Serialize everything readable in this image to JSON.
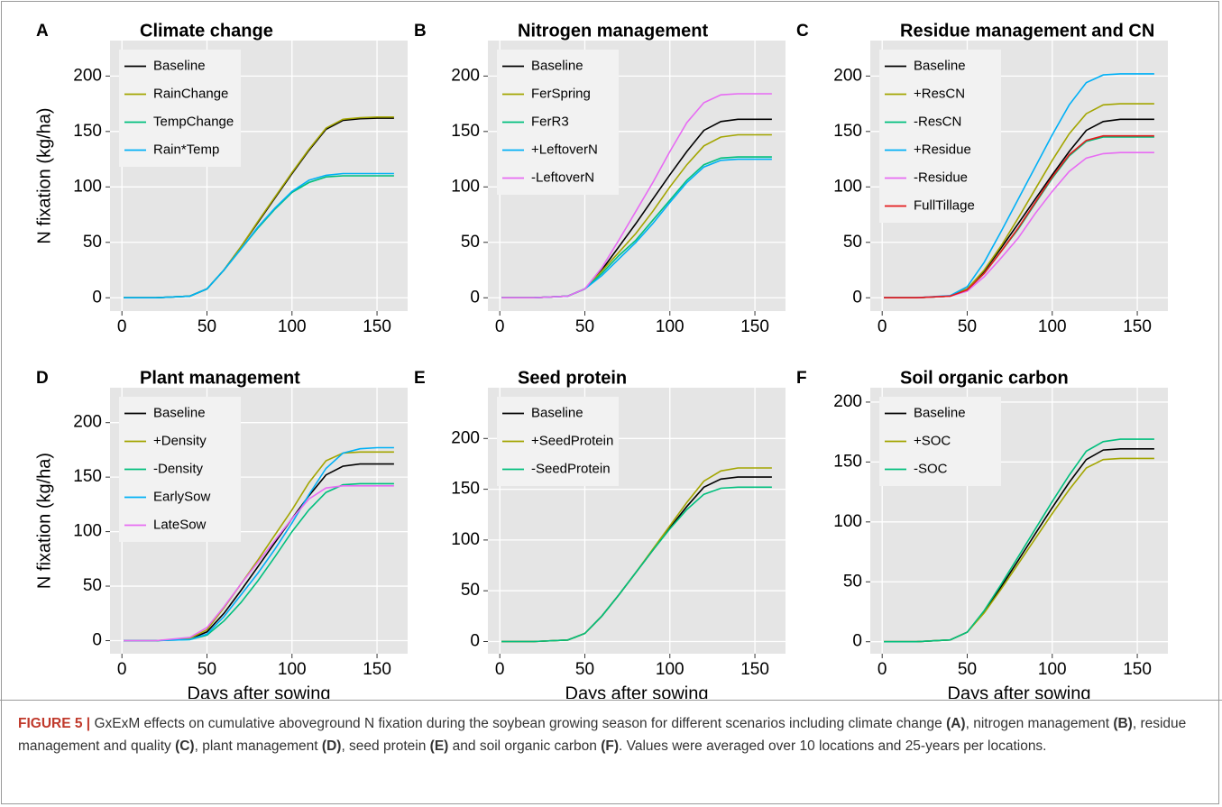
{
  "chart_data": [
    {
      "type": "line",
      "panel": "A",
      "title": "Climate change",
      "ylabel": "N fixation (kg/ha)",
      "legend": "top-left",
      "grid": true,
      "x": [
        1,
        20,
        40,
        50,
        60,
        70,
        80,
        90,
        100,
        110,
        120,
        130,
        140,
        150,
        160
      ],
      "xlim": [
        -7,
        168
      ],
      "xticks": [
        0,
        50,
        100,
        150
      ],
      "ylim": [
        -12,
        232
      ],
      "yticks": [
        0,
        50,
        100,
        150,
        200
      ],
      "series": [
        {
          "name": "Baseline",
          "color": "#000000",
          "values": [
            0,
            0,
            1.5,
            8,
            25,
            46,
            68,
            90,
            112,
            133,
            152,
            160,
            161.5,
            162,
            162
          ]
        },
        {
          "name": "RainChange",
          "color": "#A3A500",
          "values": [
            0,
            0,
            1.5,
            8,
            25,
            46,
            69,
            91,
            113,
            134,
            153,
            161,
            162.5,
            163,
            163
          ]
        },
        {
          "name": "TempChange",
          "color": "#00BF7D",
          "values": [
            0,
            0,
            1.5,
            8,
            25,
            44,
            63,
            80,
            95,
            104,
            109,
            110,
            110,
            110,
            110
          ]
        },
        {
          "name": "Rain*Temp",
          "color": "#00B0F6",
          "values": [
            0,
            0,
            1.5,
            8,
            25,
            44,
            64,
            81,
            96,
            106,
            110.5,
            112,
            112,
            112,
            112
          ]
        }
      ]
    },
    {
      "type": "line",
      "panel": "B",
      "title": "Nitrogen management",
      "legend": "top-left",
      "grid": true,
      "x": [
        1,
        20,
        40,
        50,
        60,
        70,
        80,
        90,
        100,
        110,
        120,
        130,
        140,
        150,
        160
      ],
      "xlim": [
        -7,
        168
      ],
      "xticks": [
        0,
        50,
        100,
        150
      ],
      "ylim": [
        -12,
        232
      ],
      "yticks": [
        0,
        50,
        100,
        150,
        200
      ],
      "series": [
        {
          "name": "Baseline",
          "color": "#000000",
          "values": [
            0,
            0,
            1.5,
            8,
            25,
            46,
            67,
            89,
            111,
            132,
            151,
            159,
            161,
            161,
            161
          ]
        },
        {
          "name": "FerSpring",
          "color": "#A3A500",
          "values": [
            0,
            0,
            1.5,
            8,
            24,
            41,
            58,
            78,
            100,
            120,
            137,
            145,
            147,
            147,
            147
          ]
        },
        {
          "name": "FerR3",
          "color": "#00BF7D",
          "values": [
            0,
            0,
            1.5,
            8,
            22,
            38,
            52,
            70,
            88,
            106,
            120,
            126,
            127,
            127,
            127
          ]
        },
        {
          "name": "+LeftoverN",
          "color": "#00B0F6",
          "values": [
            0,
            0,
            1.5,
            8,
            20,
            35,
            50,
            67,
            86,
            104,
            118,
            124,
            125,
            125,
            125
          ]
        },
        {
          "name": "-LeftoverN",
          "color": "#E76BF3",
          "values": [
            0,
            0,
            1.5,
            8,
            27,
            52,
            78,
            104,
            132,
            158,
            176,
            183,
            184,
            184,
            184
          ]
        }
      ]
    },
    {
      "type": "line",
      "panel": "C",
      "title": "Residue management and CN",
      "legend": "top-left",
      "grid": true,
      "x": [
        1,
        20,
        40,
        50,
        60,
        70,
        80,
        90,
        100,
        110,
        120,
        130,
        140,
        150,
        160
      ],
      "xlim": [
        -7,
        168
      ],
      "xticks": [
        0,
        50,
        100,
        150
      ],
      "ylim": [
        -12,
        232
      ],
      "yticks": [
        0,
        50,
        100,
        150,
        200
      ],
      "series": [
        {
          "name": "Baseline",
          "color": "#000000",
          "values": [
            0,
            0,
            1.5,
            8,
            24,
            45,
            67,
            89,
            111,
            132,
            151,
            159,
            161,
            161,
            161
          ]
        },
        {
          "name": "+ResCN",
          "color": "#A3A500",
          "values": [
            0,
            0,
            1.5,
            8,
            25,
            47,
            72,
            98,
            124,
            148,
            166,
            174,
            175,
            175,
            175
          ]
        },
        {
          "name": "-ResCN",
          "color": "#00BF7D",
          "values": [
            0,
            0,
            1.5,
            7,
            22,
            42,
            62,
            85,
            108,
            128,
            141,
            145,
            145,
            145,
            145
          ]
        },
        {
          "name": "+Residue",
          "color": "#00B0F6",
          "values": [
            0,
            0,
            2,
            10,
            32,
            60,
            89,
            118,
            147,
            174,
            194,
            201,
            202,
            202,
            202
          ]
        },
        {
          "name": "-Residue",
          "color": "#E76BF3",
          "values": [
            0,
            0,
            1.5,
            6,
            19,
            36,
            54,
            76,
            96,
            114,
            126,
            130,
            131,
            131,
            131
          ]
        },
        {
          "name": "FullTillage",
          "color": "#E41A1C",
          "values": [
            0,
            0,
            1.5,
            7,
            22,
            42,
            63,
            86,
            109,
            129,
            142,
            146,
            146,
            146,
            146
          ]
        }
      ]
    },
    {
      "type": "line",
      "panel": "D",
      "title": "Plant management",
      "xlabel": "Days after sowing",
      "ylabel": "N fixation (kg/ha)",
      "legend": "top-left",
      "grid": true,
      "x": [
        1,
        20,
        40,
        50,
        60,
        70,
        80,
        90,
        100,
        110,
        120,
        130,
        140,
        150,
        160
      ],
      "xlim": [
        -7,
        168
      ],
      "xticks": [
        0,
        50,
        100,
        150
      ],
      "ylim": [
        -12,
        232
      ],
      "yticks": [
        0,
        50,
        100,
        150,
        200
      ],
      "series": [
        {
          "name": "Baseline",
          "color": "#000000",
          "values": [
            0,
            0,
            1.5,
            8,
            25,
            46,
            68,
            90,
            112,
            133,
            152,
            160,
            162,
            162,
            162
          ]
        },
        {
          "name": "+Density",
          "color": "#A3A500",
          "values": [
            0,
            0,
            2,
            10,
            30,
            52,
            74,
            97,
            120,
            145,
            165,
            172,
            173,
            173,
            173
          ]
        },
        {
          "name": "-Density",
          "color": "#00BF7D",
          "values": [
            0,
            0,
            1,
            5,
            18,
            35,
            55,
            77,
            100,
            120,
            136,
            143,
            144,
            144,
            144
          ]
        },
        {
          "name": "EarlySow",
          "color": "#00B0F6",
          "values": [
            0,
            0,
            1,
            6,
            22,
            42,
            62,
            84,
            108,
            134,
            158,
            172,
            176,
            177,
            177
          ]
        },
        {
          "name": "LateSow",
          "color": "#E76BF3",
          "values": [
            0,
            0,
            3,
            12,
            31,
            52,
            72,
            92,
            112,
            130,
            140,
            142,
            142,
            142,
            142
          ]
        }
      ]
    },
    {
      "type": "line",
      "panel": "E",
      "title": "Seed protein",
      "xlabel": "Days after sowing",
      "legend": "top-left",
      "grid": true,
      "x": [
        1,
        20,
        40,
        50,
        60,
        70,
        80,
        90,
        100,
        110,
        120,
        130,
        140,
        150,
        160
      ],
      "xlim": [
        -7,
        168
      ],
      "xticks": [
        0,
        50,
        100,
        150
      ],
      "ylim": [
        -12,
        250
      ],
      "yticks": [
        0,
        50,
        100,
        150,
        200
      ],
      "series": [
        {
          "name": "Baseline",
          "color": "#000000",
          "values": [
            0,
            0,
            1.5,
            8,
            25,
            46,
            68,
            90,
            112,
            133,
            152,
            160,
            162,
            162,
            162
          ]
        },
        {
          "name": "+SeedProtein",
          "color": "#A3A500",
          "values": [
            0,
            0,
            1.5,
            8,
            25,
            46,
            68,
            91,
            114,
            137,
            158,
            168,
            171,
            171,
            171
          ]
        },
        {
          "name": "-SeedProtein",
          "color": "#00BF7D",
          "values": [
            0,
            0,
            1.5,
            8,
            25,
            46,
            68,
            90,
            111,
            130,
            145,
            151,
            152,
            152,
            152
          ]
        }
      ]
    },
    {
      "type": "line",
      "panel": "F",
      "title": "Soil organic carbon",
      "xlabel": "Days after sowing",
      "legend": "top-left",
      "grid": true,
      "x": [
        1,
        20,
        40,
        50,
        60,
        70,
        80,
        90,
        100,
        110,
        120,
        130,
        140,
        150,
        160
      ],
      "xlim": [
        -7,
        168
      ],
      "xticks": [
        0,
        50,
        100,
        150
      ],
      "ylim": [
        -10,
        212
      ],
      "yticks": [
        0,
        50,
        100,
        150,
        200
      ],
      "series": [
        {
          "name": "Baseline",
          "color": "#000000",
          "values": [
            0,
            0,
            1.5,
            8,
            25,
            46,
            68,
            90,
            112,
            133,
            152,
            160,
            161,
            161,
            161
          ]
        },
        {
          "name": "+SOC",
          "color": "#A3A500",
          "values": [
            0,
            0,
            1.5,
            8,
            24,
            44,
            65,
            86,
            107,
            127,
            145,
            152,
            153,
            153,
            153
          ]
        },
        {
          "name": "-SOC",
          "color": "#00BF7D",
          "values": [
            0,
            0,
            1.5,
            8,
            26,
            48,
            71,
            94,
            117,
            139,
            159,
            167,
            169,
            169,
            169
          ]
        }
      ]
    }
  ],
  "caption": {
    "label": "FIGURE 5 |",
    "runs": [
      " GxExM effects on cumulative aboveground N fixation during the soybean growing season for different scenarios including climate change ",
      "(A)",
      ", nitrogen management ",
      "(B)",
      ", residue management and quality ",
      "(C)",
      ", plant management ",
      "(D)",
      ", seed protein ",
      "(E)",
      " and soil organic carbon ",
      "(F)",
      ". Values were averaged over 10 locations and 25-years per locations."
    ]
  }
}
